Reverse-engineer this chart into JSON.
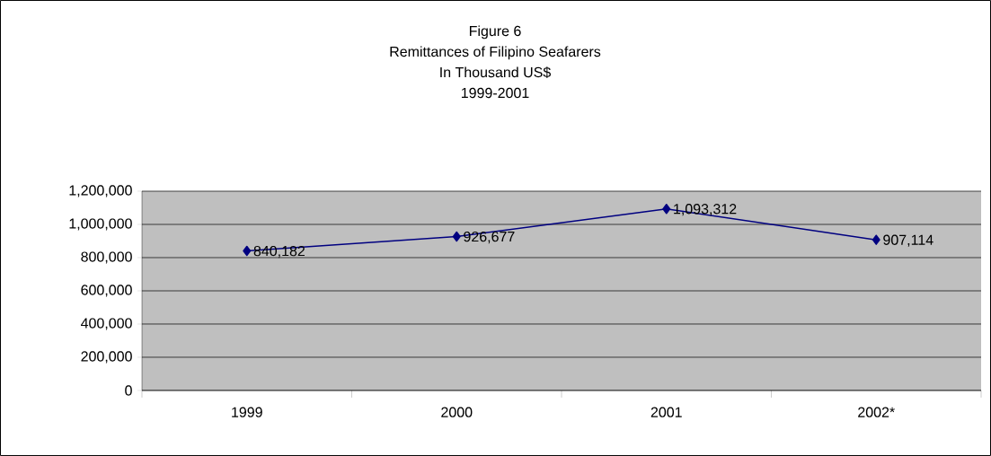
{
  "chart_data": {
    "type": "line",
    "title": "Figure 6",
    "subtitle": "Remittances of Filipino Seafarers",
    "annotations": [
      "In Thousand US$",
      "1999-2001"
    ],
    "categories": [
      "1999",
      "2000",
      "2001",
      "2002*"
    ],
    "series": [
      {
        "color": "#000080",
        "values": [
          840182,
          926677,
          1093312,
          907114
        ]
      }
    ],
    "value_labels": [
      "840,182",
      "926,677",
      "1,093,312",
      "907,114"
    ],
    "ylim": [
      0,
      1200000
    ],
    "yticks": [
      {
        "value": 0,
        "label": "0"
      },
      {
        "value": 200000,
        "label": "200,000"
      },
      {
        "value": 400000,
        "label": "400,000"
      },
      {
        "value": 600000,
        "label": "600,000"
      },
      {
        "value": 800000,
        "label": "800,000"
      },
      {
        "value": 1000000,
        "label": "1,000,000"
      },
      {
        "value": 1200000,
        "label": "1,200,000"
      }
    ],
    "grid": "y",
    "marker": "diamond",
    "line_style": "solid"
  }
}
